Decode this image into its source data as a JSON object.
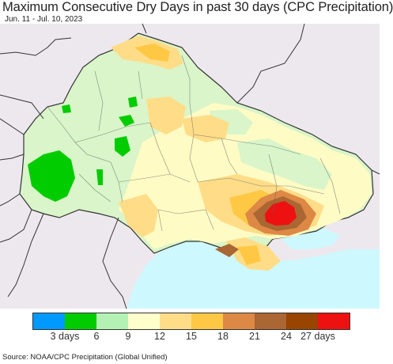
{
  "header": {
    "title": "Maximum Consecutive Dry Days in past 30 days (CPC Precipitation)",
    "subtitle": "Jun. 11 - Jul. 10, 2023"
  },
  "legend": {
    "colors": [
      "#0099ff",
      "#00cc00",
      "#b3f2b3",
      "#ffffcc",
      "#ffdd88",
      "#ffc844",
      "#dd8844",
      "#aa6633",
      "#994400",
      "#ee1111"
    ],
    "labels": [
      "3 days",
      "6",
      "9",
      "12",
      "15",
      "18",
      "21",
      "24",
      "27 days"
    ]
  },
  "footer": {
    "source": "Source: NOAA/CPC Precipitation (Global Unified)"
  },
  "colors": {
    "outside_land": "#ede8ee",
    "sea": "#cdf8fd",
    "border": "#333333"
  }
}
